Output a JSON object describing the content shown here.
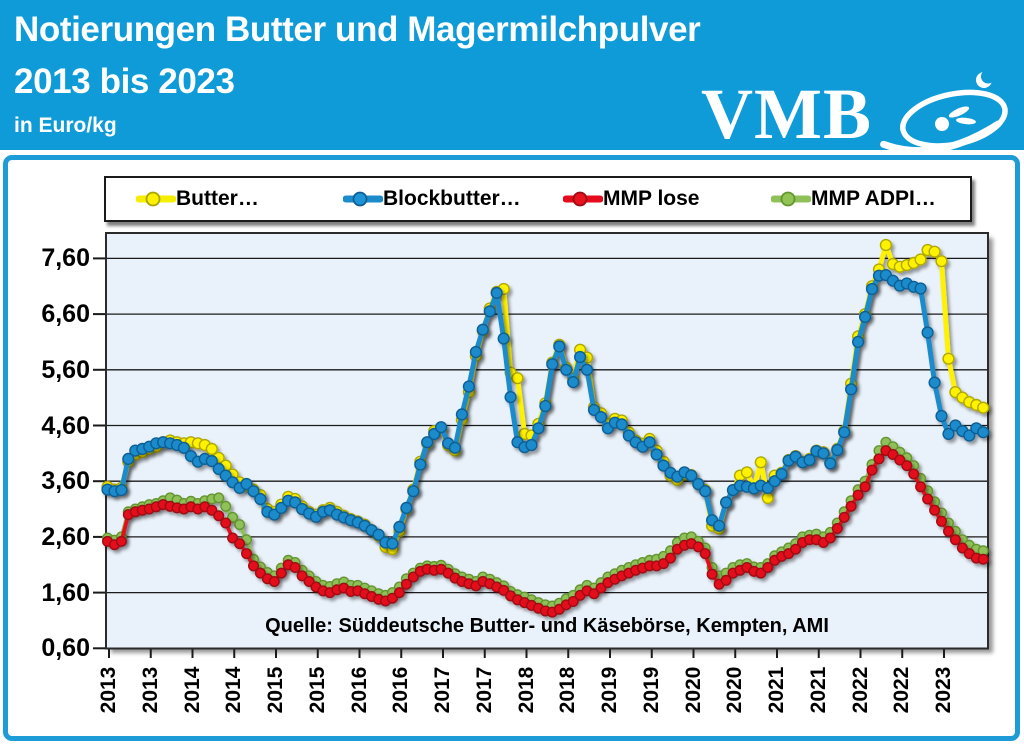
{
  "header": {
    "title_line1": "Notierungen Butter und Magermilchpulver",
    "title_line2": "2013 bis 2023",
    "subtitle": "in Euro/kg",
    "logo_text": "VMB"
  },
  "colors": {
    "header_bg": "#0F9BD7",
    "frame_border": "#1E9CD8",
    "plot_bg": "#E9F1FA",
    "grid": "#1a1a1a",
    "butter": "#FFF200",
    "butter_outline": "#AFA800",
    "blockbutter": "#1B8BCB",
    "blockbutter_outline": "#0F5E93",
    "mmp_lose": "#E30B1C",
    "mmp_lose_outline": "#9C0A12",
    "mmp_adpi": "#8FC05A",
    "mmp_adpi_outline": "#64952F"
  },
  "legend": {
    "items": [
      {
        "label": "Butter…",
        "line_color": "#F5EE00",
        "fill": "#FFF200",
        "outline": "#A9A400"
      },
      {
        "label": "Blockbutter…",
        "line_color": "#1B8BCB",
        "fill": "#1E93D6",
        "outline": "#0F5E93"
      },
      {
        "label": "MMP lose",
        "line_color": "#E30B1C",
        "fill": "#E8131F",
        "outline": "#9C0A12"
      },
      {
        "label": "MMP ADPI…",
        "line_color": "#8FC05A",
        "fill": "#92C455",
        "outline": "#64952F"
      }
    ]
  },
  "source_note": "Quelle: Süddeutsche Butter- und Käsebörse, Kempten, AMI",
  "chart_data": {
    "type": "line",
    "title": "Notierungen Butter und Magermilchpulver 2013 bis 2023",
    "ylabel": "Euro/kg",
    "frequency": "monthly",
    "x_start": "2013-01",
    "x_end": "2023-07",
    "ylim": [
      0.6,
      8.0
    ],
    "grid": "horizontal",
    "legend_position": "top",
    "y_tick_labels": [
      "7,60",
      "6,60",
      "5,60",
      "4,60",
      "3,60",
      "2,60",
      "1,60",
      "0,60"
    ],
    "x_tick_labels": [
      "2013",
      "2013",
      "2014",
      "2014",
      "2015",
      "2015",
      "2016",
      "2016",
      "2017",
      "2017",
      "2018",
      "2018",
      "2019",
      "2019",
      "2020",
      "2020",
      "2021",
      "2021",
      "2022",
      "2022",
      "2023"
    ],
    "series": [
      {
        "id": "butter",
        "name": "Butter…",
        "color": "#FFF200",
        "outline": "#AFA800",
        "values": [
          3.5,
          3.45,
          3.48,
          3.95,
          4.08,
          4.12,
          4.18,
          4.22,
          4.3,
          4.33,
          4.3,
          4.28,
          4.3,
          4.28,
          4.25,
          4.18,
          4.02,
          3.88,
          3.72,
          3.58,
          3.52,
          3.45,
          3.35,
          3.1,
          3.05,
          3.18,
          3.32,
          3.28,
          3.15,
          3.05,
          3.0,
          3.08,
          3.12,
          3.05,
          2.98,
          2.92,
          2.88,
          2.82,
          2.72,
          2.62,
          2.42,
          2.38,
          2.7,
          3.1,
          3.45,
          3.95,
          4.28,
          4.5,
          4.55,
          4.25,
          4.15,
          4.7,
          5.2,
          5.85,
          6.3,
          6.7,
          7.0,
          7.05,
          5.55,
          5.45,
          4.45,
          4.42,
          4.63,
          5.0,
          5.73,
          6.05,
          5.64,
          5.44,
          5.96,
          5.82,
          4.93,
          4.82,
          4.63,
          4.72,
          4.69,
          4.48,
          4.33,
          4.27,
          4.36,
          4.15,
          3.95,
          3.7,
          3.62,
          3.72,
          3.71,
          3.55,
          3.44,
          2.8,
          2.75,
          3.22,
          3.44,
          3.7,
          3.76,
          3.47,
          3.94,
          3.3,
          3.7,
          3.75,
          3.98,
          4.05,
          3.95,
          4.0,
          4.15,
          4.12,
          3.93,
          4.18,
          4.5,
          5.35,
          6.2,
          6.6,
          7.1,
          7.4,
          7.84,
          7.5,
          7.45,
          7.48,
          7.52,
          7.58,
          7.75,
          7.72,
          7.55,
          5.8,
          5.2,
          5.1,
          5.02,
          4.97,
          4.92
        ]
      },
      {
        "id": "blockbutter",
        "name": "Blockbutter…",
        "color": "#1B8BCB",
        "outline": "#0F5E93",
        "values": [
          3.45,
          3.42,
          3.44,
          4.0,
          4.15,
          4.18,
          4.22,
          4.28,
          4.3,
          4.28,
          4.25,
          4.2,
          4.05,
          3.95,
          4.0,
          3.96,
          3.82,
          3.7,
          3.58,
          3.48,
          3.55,
          3.42,
          3.28,
          3.05,
          3.0,
          3.12,
          3.25,
          3.22,
          3.1,
          3.02,
          2.96,
          3.05,
          3.08,
          3.0,
          2.95,
          2.9,
          2.86,
          2.8,
          2.72,
          2.64,
          2.5,
          2.48,
          2.78,
          3.12,
          3.42,
          3.9,
          4.3,
          4.45,
          4.57,
          4.28,
          4.2,
          4.8,
          5.3,
          5.92,
          6.32,
          6.65,
          6.98,
          6.16,
          5.11,
          4.3,
          4.21,
          4.25,
          4.55,
          4.95,
          5.7,
          6.02,
          5.6,
          5.38,
          5.83,
          5.6,
          4.88,
          4.75,
          4.55,
          4.65,
          4.62,
          4.42,
          4.3,
          4.22,
          4.3,
          4.08,
          3.88,
          3.75,
          3.68,
          3.76,
          3.7,
          3.55,
          3.42,
          2.9,
          2.8,
          3.22,
          3.44,
          3.52,
          3.5,
          3.47,
          3.52,
          3.48,
          3.6,
          3.73,
          3.97,
          4.04,
          3.94,
          3.98,
          4.14,
          4.1,
          3.92,
          4.16,
          4.48,
          5.25,
          6.1,
          6.55,
          7.05,
          7.29,
          7.3,
          7.2,
          7.11,
          7.15,
          7.09,
          7.06,
          6.27,
          5.37,
          4.77,
          4.45,
          4.6,
          4.5,
          4.42,
          4.55,
          4.48
        ]
      },
      {
        "id": "mmp-adpi",
        "name": "MMP ADPI…",
        "color": "#8FC05A",
        "outline": "#64952F",
        "values": [
          2.58,
          2.54,
          2.6,
          3.05,
          3.1,
          3.14,
          3.18,
          3.2,
          3.25,
          3.3,
          3.26,
          3.2,
          3.24,
          3.2,
          3.25,
          3.28,
          3.3,
          3.15,
          2.95,
          2.82,
          2.55,
          2.2,
          2.06,
          1.96,
          1.9,
          2.04,
          2.18,
          2.14,
          2.0,
          1.9,
          1.8,
          1.73,
          1.71,
          1.76,
          1.79,
          1.73,
          1.73,
          1.68,
          1.63,
          1.58,
          1.55,
          1.6,
          1.7,
          1.85,
          1.95,
          2.04,
          2.08,
          2.07,
          2.09,
          2.02,
          1.94,
          1.88,
          1.84,
          1.8,
          1.88,
          1.84,
          1.78,
          1.72,
          1.62,
          1.56,
          1.52,
          1.47,
          1.42,
          1.38,
          1.36,
          1.41,
          1.49,
          1.55,
          1.65,
          1.73,
          1.68,
          1.78,
          1.88,
          1.94,
          2.0,
          2.05,
          2.1,
          2.14,
          2.18,
          2.2,
          2.25,
          2.35,
          2.5,
          2.58,
          2.6,
          2.52,
          2.4,
          2.05,
          1.9,
          1.95,
          2.05,
          2.1,
          2.12,
          2.06,
          2.05,
          2.12,
          2.26,
          2.33,
          2.4,
          2.48,
          2.6,
          2.63,
          2.65,
          2.6,
          2.68,
          2.85,
          3.05,
          3.25,
          3.45,
          3.6,
          3.9,
          4.15,
          4.3,
          4.22,
          4.12,
          4.02,
          3.88,
          3.65,
          3.43,
          3.23,
          3.03,
          2.85,
          2.7,
          2.55,
          2.45,
          2.38,
          2.35
        ]
      },
      {
        "id": "mmp-lose",
        "name": "MMP lose",
        "color": "#E30B1C",
        "outline": "#9C0A12",
        "values": [
          2.52,
          2.46,
          2.52,
          3.0,
          3.05,
          3.08,
          3.1,
          3.14,
          3.18,
          3.15,
          3.12,
          3.1,
          3.14,
          3.1,
          3.14,
          3.08,
          2.98,
          2.85,
          2.58,
          2.48,
          2.3,
          2.08,
          1.95,
          1.85,
          1.8,
          1.95,
          2.1,
          2.05,
          1.9,
          1.8,
          1.7,
          1.63,
          1.6,
          1.65,
          1.68,
          1.62,
          1.63,
          1.58,
          1.53,
          1.48,
          1.45,
          1.5,
          1.6,
          1.75,
          1.88,
          1.98,
          2.02,
          2.0,
          2.02,
          1.95,
          1.86,
          1.8,
          1.76,
          1.72,
          1.8,
          1.76,
          1.7,
          1.64,
          1.54,
          1.47,
          1.42,
          1.37,
          1.32,
          1.27,
          1.25,
          1.3,
          1.38,
          1.44,
          1.55,
          1.63,
          1.58,
          1.68,
          1.78,
          1.84,
          1.9,
          1.95,
          2.0,
          2.04,
          2.08,
          2.08,
          2.12,
          2.22,
          2.38,
          2.45,
          2.48,
          2.42,
          2.3,
          1.93,
          1.75,
          1.82,
          1.95,
          2.0,
          2.05,
          1.98,
          1.95,
          2.05,
          2.18,
          2.25,
          2.3,
          2.38,
          2.5,
          2.55,
          2.55,
          2.5,
          2.58,
          2.75,
          2.95,
          3.15,
          3.35,
          3.5,
          3.8,
          4.0,
          4.15,
          4.08,
          3.98,
          3.88,
          3.73,
          3.5,
          3.28,
          3.08,
          2.88,
          2.7,
          2.55,
          2.4,
          2.3,
          2.22,
          2.2
        ]
      }
    ]
  }
}
